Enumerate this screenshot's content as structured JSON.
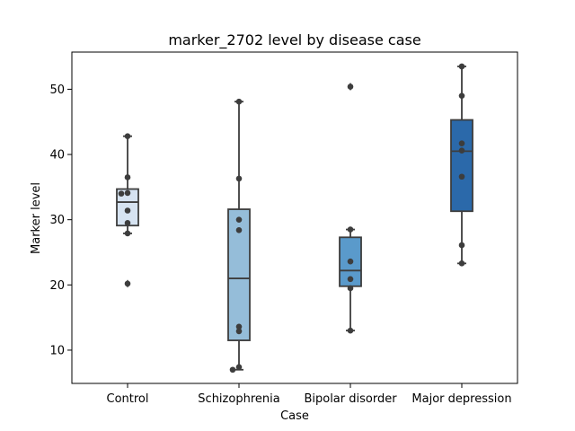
{
  "chart_data": {
    "type": "box",
    "title": "marker_2702 level by disease case",
    "xlabel": "Case",
    "ylabel": "Marker level",
    "ylim": [
      4.9,
      55.7
    ],
    "yticks": [
      10,
      20,
      30,
      40,
      50
    ],
    "grid": false,
    "categories": [
      "Control",
      "Schizophrenia",
      "Bipolar disorder",
      "Major depression"
    ],
    "colors": [
      "#d6e3f1",
      "#95bdd9",
      "#5a9acb",
      "#2b69aa"
    ],
    "boxes": [
      {
        "category": "Control",
        "q1": 29.1,
        "median": 32.7,
        "q3": 34.7,
        "whisker_low": 27.9,
        "whisker_high": 42.8,
        "outliers": [
          20.2
        ],
        "points": [
          42.8,
          36.5,
          34.1,
          34.0,
          31.4,
          29.5,
          27.9,
          20.2
        ]
      },
      {
        "category": "Schizophrenia",
        "q1": 11.5,
        "median": 21.0,
        "q3": 31.6,
        "whisker_low": 7.0,
        "whisker_high": 48.1,
        "outliers": [],
        "points": [
          48.1,
          36.3,
          30.0,
          28.4,
          13.6,
          12.9,
          7.4,
          7.0
        ]
      },
      {
        "category": "Bipolar disorder",
        "q1": 19.8,
        "median": 22.2,
        "q3": 27.3,
        "whisker_low": 13.0,
        "whisker_high": 28.5,
        "outliers": [
          50.4
        ],
        "points": [
          50.4,
          28.5,
          23.6,
          20.9,
          19.5,
          13.0
        ]
      },
      {
        "category": "Major depression",
        "q1": 31.3,
        "median": 40.5,
        "q3": 45.3,
        "whisker_low": 23.3,
        "whisker_high": 53.5,
        "outliers": [],
        "points": [
          53.5,
          49.0,
          41.7,
          40.6,
          36.6,
          26.1,
          23.3
        ]
      }
    ]
  }
}
